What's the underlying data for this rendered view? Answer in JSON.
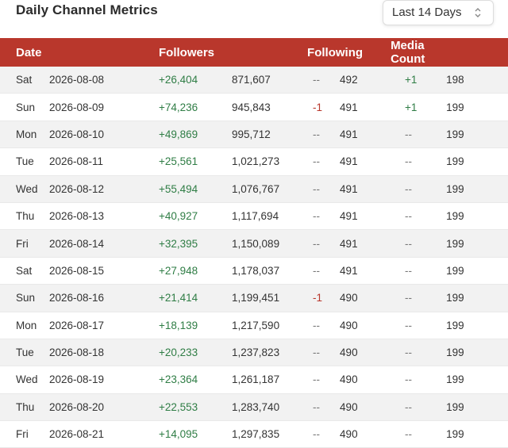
{
  "header": {
    "title": "Daily Channel Metrics",
    "range_select": {
      "value": "Last 14 Days"
    }
  },
  "table": {
    "headers": {
      "date": "Date",
      "followers": "Followers",
      "following": "Following",
      "media_count": "Media Count"
    },
    "rows": [
      {
        "day": "Sat",
        "date": "2026-08-08",
        "followers_change": "+26,404",
        "followers_total": "871,607",
        "following_change": "--",
        "following_total": "492",
        "media_change": "+1",
        "media_total": "198"
      },
      {
        "day": "Sun",
        "date": "2026-08-09",
        "followers_change": "+74,236",
        "followers_total": "945,843",
        "following_change": "-1",
        "following_total": "491",
        "media_change": "+1",
        "media_total": "199"
      },
      {
        "day": "Mon",
        "date": "2026-08-10",
        "followers_change": "+49,869",
        "followers_total": "995,712",
        "following_change": "--",
        "following_total": "491",
        "media_change": "--",
        "media_total": "199"
      },
      {
        "day": "Tue",
        "date": "2026-08-11",
        "followers_change": "+25,561",
        "followers_total": "1,021,273",
        "following_change": "--",
        "following_total": "491",
        "media_change": "--",
        "media_total": "199"
      },
      {
        "day": "Wed",
        "date": "2026-08-12",
        "followers_change": "+55,494",
        "followers_total": "1,076,767",
        "following_change": "--",
        "following_total": "491",
        "media_change": "--",
        "media_total": "199"
      },
      {
        "day": "Thu",
        "date": "2026-08-13",
        "followers_change": "+40,927",
        "followers_total": "1,117,694",
        "following_change": "--",
        "following_total": "491",
        "media_change": "--",
        "media_total": "199"
      },
      {
        "day": "Fri",
        "date": "2026-08-14",
        "followers_change": "+32,395",
        "followers_total": "1,150,089",
        "following_change": "--",
        "following_total": "491",
        "media_change": "--",
        "media_total": "199"
      },
      {
        "day": "Sat",
        "date": "2026-08-15",
        "followers_change": "+27,948",
        "followers_total": "1,178,037",
        "following_change": "--",
        "following_total": "491",
        "media_change": "--",
        "media_total": "199"
      },
      {
        "day": "Sun",
        "date": "2026-08-16",
        "followers_change": "+21,414",
        "followers_total": "1,199,451",
        "following_change": "-1",
        "following_total": "490",
        "media_change": "--",
        "media_total": "199"
      },
      {
        "day": "Mon",
        "date": "2026-08-17",
        "followers_change": "+18,139",
        "followers_total": "1,217,590",
        "following_change": "--",
        "following_total": "490",
        "media_change": "--",
        "media_total": "199"
      },
      {
        "day": "Tue",
        "date": "2026-08-18",
        "followers_change": "+20,233",
        "followers_total": "1,237,823",
        "following_change": "--",
        "following_total": "490",
        "media_change": "--",
        "media_total": "199"
      },
      {
        "day": "Wed",
        "date": "2026-08-19",
        "followers_change": "+23,364",
        "followers_total": "1,261,187",
        "following_change": "--",
        "following_total": "490",
        "media_change": "--",
        "media_total": "199"
      },
      {
        "day": "Thu",
        "date": "2026-08-20",
        "followers_change": "+22,553",
        "followers_total": "1,283,740",
        "following_change": "--",
        "following_total": "490",
        "media_change": "--",
        "media_total": "199"
      },
      {
        "day": "Fri",
        "date": "2026-08-21",
        "followers_change": "+14,095",
        "followers_total": "1,297,835",
        "following_change": "--",
        "following_total": "490",
        "media_change": "--",
        "media_total": "199"
      }
    ]
  },
  "icons": {
    "range_select": "chevron-up-down-icon"
  },
  "colors": {
    "header_bg": "#b9372c",
    "positive": "#2f7d45",
    "negative": "#b8372c",
    "stripe": "#f2f2f2"
  }
}
